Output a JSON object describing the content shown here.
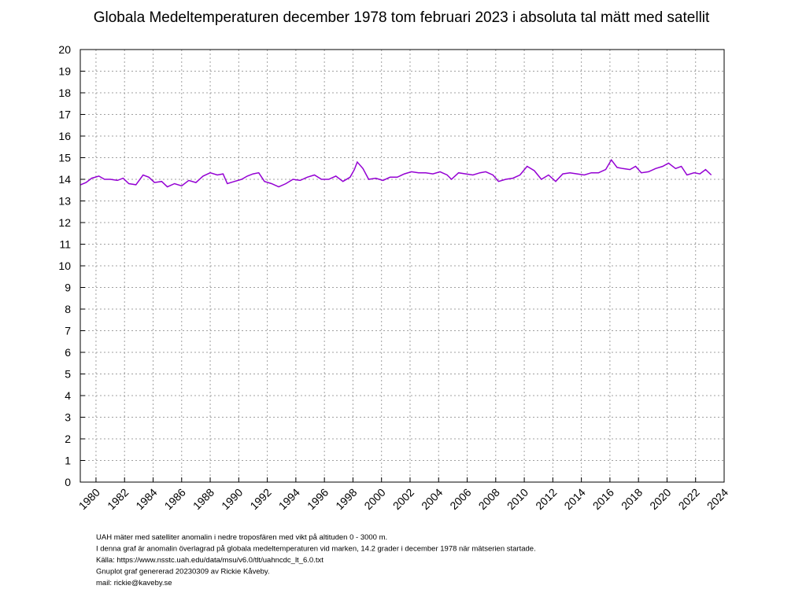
{
  "chart_data": {
    "type": "line",
    "title": "Globala Medeltemperaturen december 1978 tom februari 2023 i absoluta tal mätt med satellit",
    "x": [
      1978.92,
      1979.3,
      1979.7,
      1980.2,
      1980.6,
      1981.0,
      1981.5,
      1981.9,
      1982.3,
      1982.8,
      1983.3,
      1983.7,
      1984.1,
      1984.6,
      1985.0,
      1985.5,
      1986.0,
      1986.5,
      1987.0,
      1987.5,
      1988.0,
      1988.5,
      1988.9,
      1989.2,
      1989.7,
      1990.2,
      1990.6,
      1991.0,
      1991.4,
      1991.8,
      1992.3,
      1992.8,
      1993.3,
      1993.8,
      1994.3,
      1994.8,
      1995.3,
      1995.8,
      1996.3,
      1996.8,
      1997.3,
      1997.8,
      1998.1,
      1998.3,
      1998.7,
      1999.1,
      1999.6,
      2000.1,
      2000.6,
      2001.1,
      2001.6,
      2002.1,
      2002.6,
      2003.1,
      2003.6,
      2004.1,
      2004.6,
      2004.9,
      2005.4,
      2005.9,
      2006.4,
      2006.9,
      2007.3,
      2007.8,
      2008.2,
      2008.7,
      2009.2,
      2009.7,
      2010.2,
      2010.7,
      2011.2,
      2011.7,
      2012.2,
      2012.7,
      2013.2,
      2013.7,
      2014.2,
      2014.7,
      2015.2,
      2015.7,
      2016.1,
      2016.5,
      2016.9,
      2017.4,
      2017.8,
      2018.2,
      2018.7,
      2019.2,
      2019.7,
      2020.1,
      2020.6,
      2021.0,
      2021.4,
      2021.9,
      2022.3,
      2022.7,
      2023.1
    ],
    "series": [
      {
        "color": "#9400d3",
        "values": [
          13.75,
          13.85,
          14.05,
          14.15,
          14.0,
          14.0,
          13.95,
          14.05,
          13.8,
          13.75,
          14.2,
          14.1,
          13.85,
          13.9,
          13.65,
          13.8,
          13.7,
          13.95,
          13.85,
          14.15,
          14.3,
          14.2,
          14.25,
          13.8,
          13.9,
          14.0,
          14.15,
          14.25,
          14.3,
          13.9,
          13.8,
          13.65,
          13.8,
          14.0,
          13.95,
          14.1,
          14.2,
          14.0,
          14.0,
          14.15,
          13.9,
          14.1,
          14.45,
          14.8,
          14.5,
          14.0,
          14.05,
          13.95,
          14.1,
          14.1,
          14.25,
          14.35,
          14.3,
          14.3,
          14.25,
          14.35,
          14.2,
          14.0,
          14.3,
          14.25,
          14.2,
          14.3,
          14.35,
          14.2,
          13.9,
          14.0,
          14.05,
          14.2,
          14.6,
          14.4,
          14.0,
          14.2,
          13.9,
          14.25,
          14.3,
          14.25,
          14.2,
          14.3,
          14.3,
          14.45,
          14.9,
          14.55,
          14.5,
          14.45,
          14.6,
          14.3,
          14.35,
          14.5,
          14.6,
          14.75,
          14.5,
          14.6,
          14.2,
          14.3,
          14.25,
          14.45,
          14.2
        ]
      }
    ],
    "xlim": [
      1978.9,
      2024
    ],
    "xticks": [
      1980,
      1982,
      1984,
      1986,
      1988,
      1990,
      1992,
      1994,
      1996,
      1998,
      2000,
      2002,
      2004,
      2006,
      2008,
      2010,
      2012,
      2014,
      2016,
      2018,
      2020,
      2022,
      2024
    ],
    "ylim": [
      0,
      20
    ],
    "yticks": [
      0,
      1,
      2,
      3,
      4,
      5,
      6,
      7,
      8,
      9,
      10,
      11,
      12,
      13,
      14,
      15,
      16,
      17,
      18,
      19,
      20
    ],
    "grid": true,
    "annotations": [
      "UAH mäter med satelliter anomalin i nedre troposfären med vikt på altituden 0 - 3000 m.",
      "I denna graf är anomalin överlagrad på globala medeltemperaturen vid marken, 14.2 grader i december 1978 när mätserien startade.",
      "Källa: https://www.nsstc.uah.edu/data/msu/v6.0/tlt/uahncdc_lt_6.0.txt",
      "Gnuplot graf genererad 20230309 av Rickie Kåveby.",
      "mail: rickie@kaveby.se"
    ]
  }
}
